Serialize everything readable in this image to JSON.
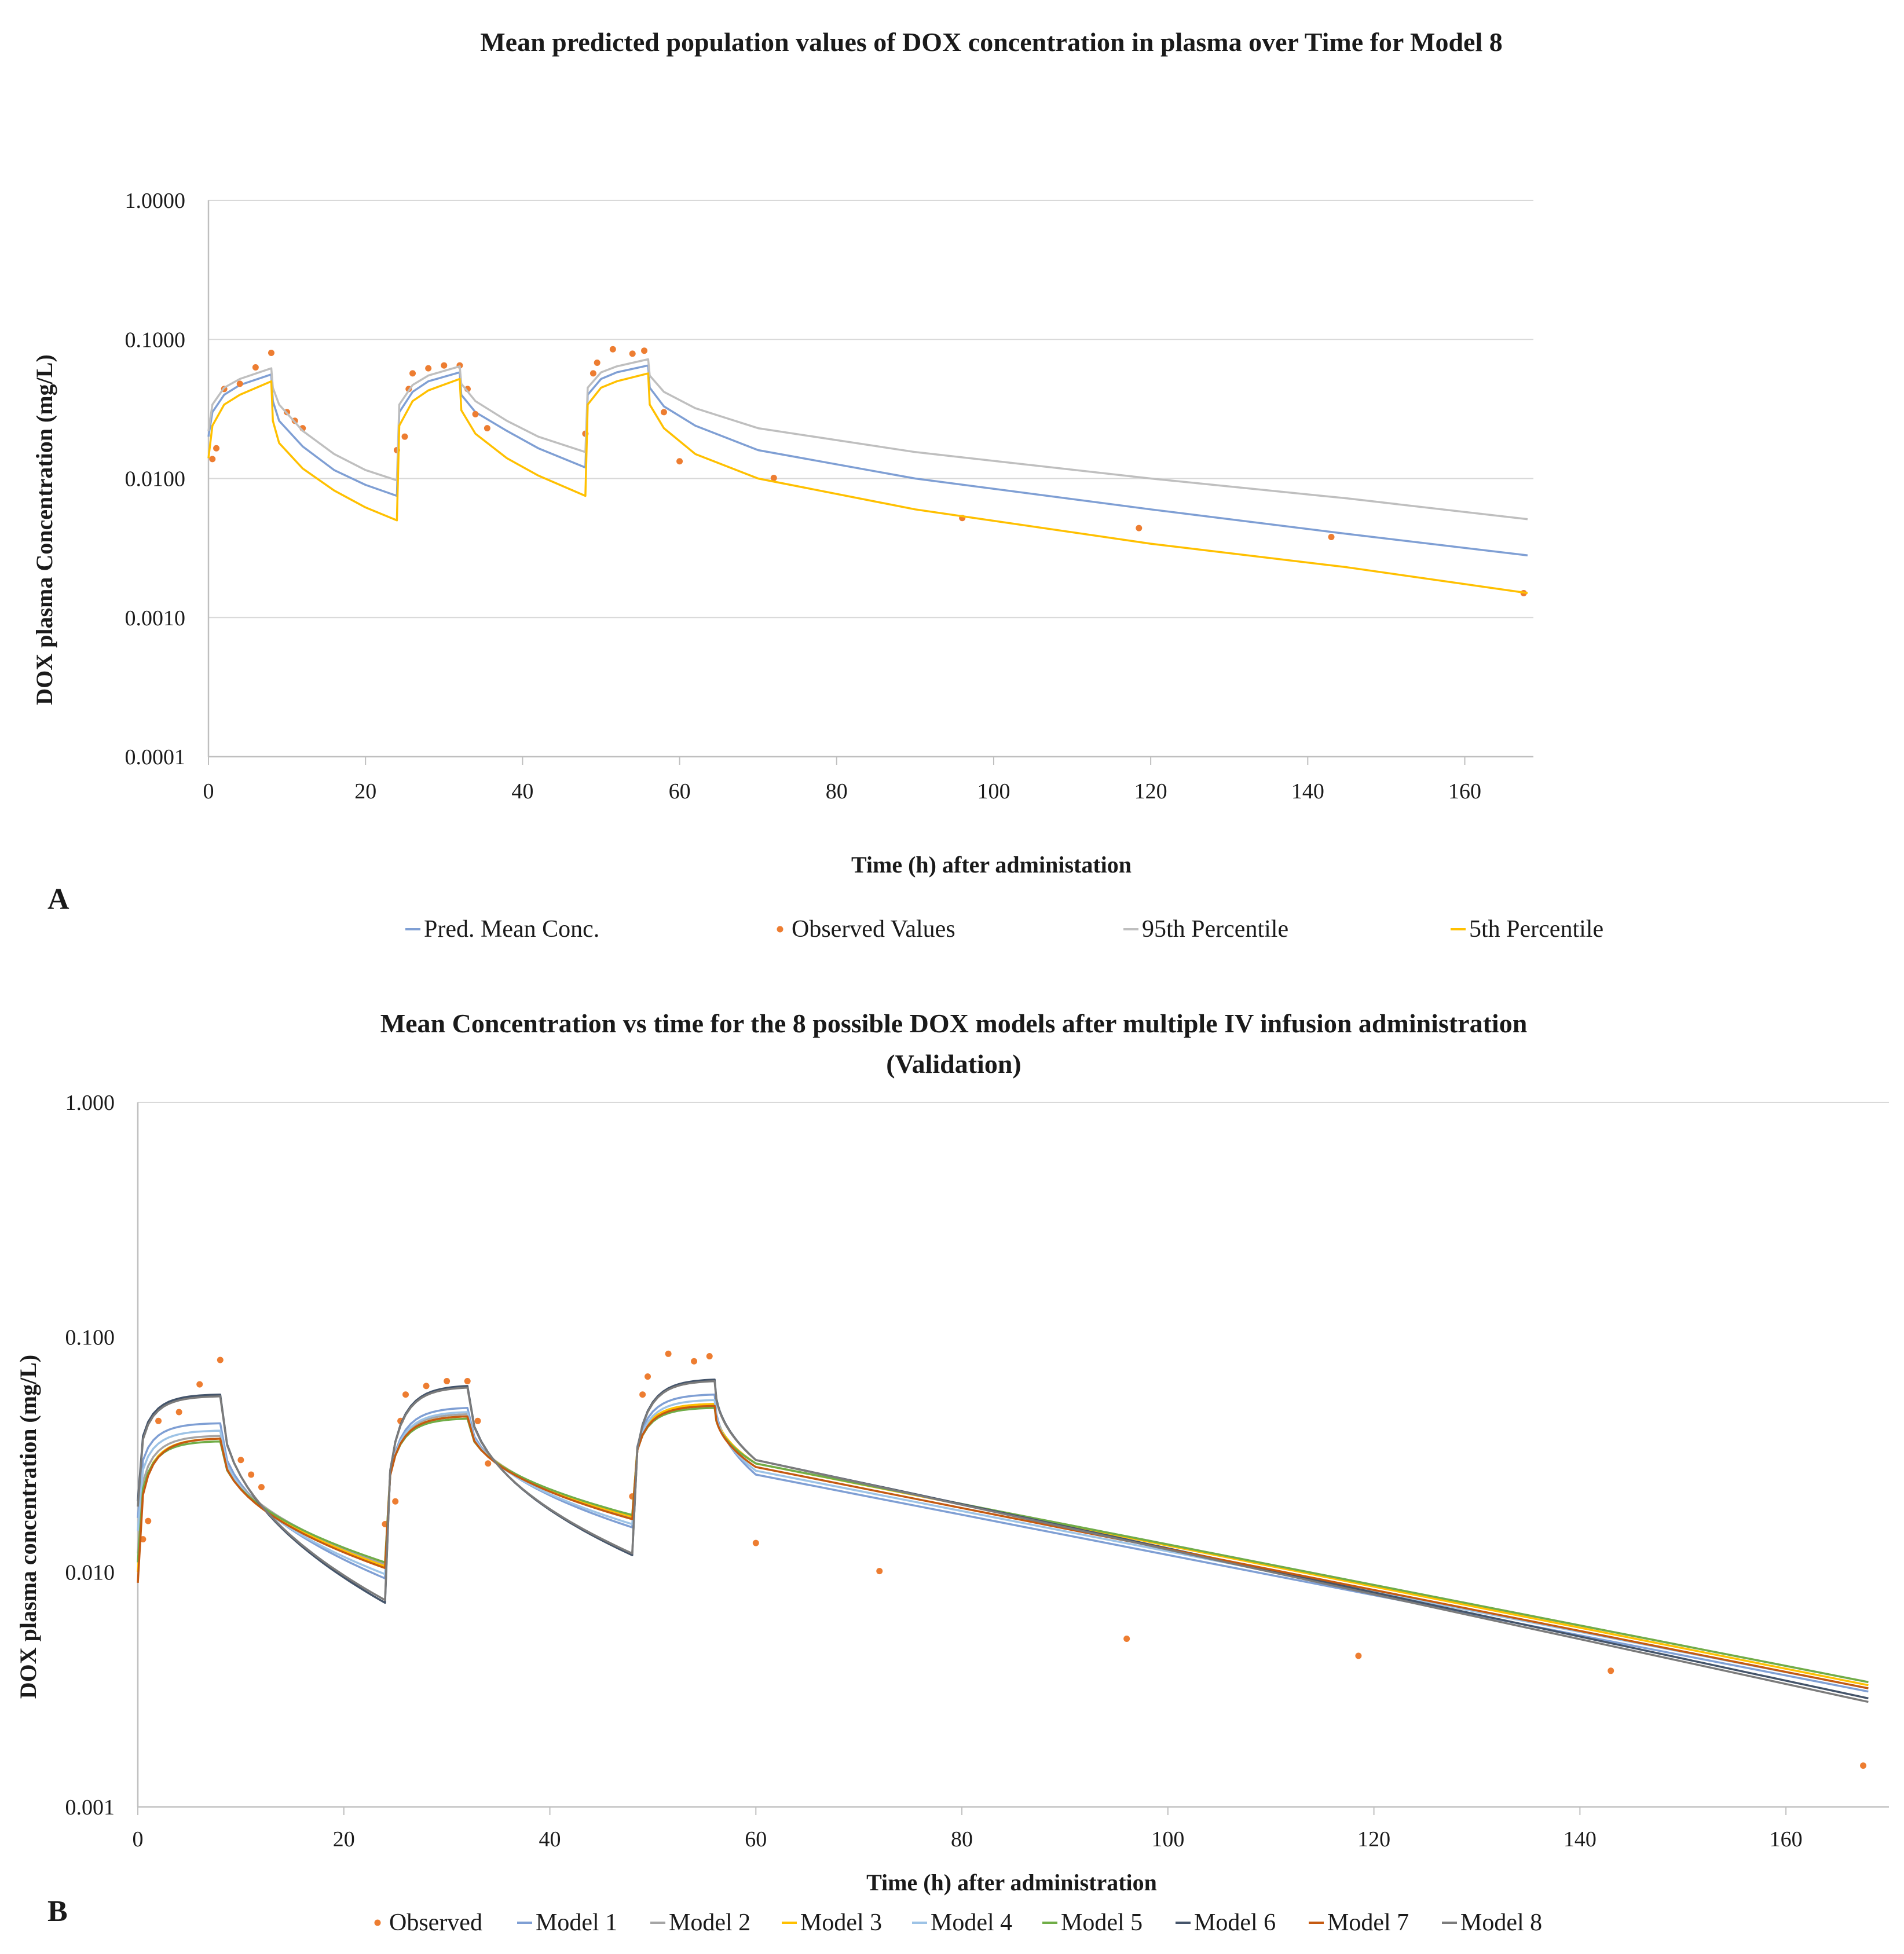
{
  "chart_data": [
    {
      "type": "line",
      "panel_label": "A",
      "title": "Mean predicted population values of DOX concentration in plasma over Time for Model 8",
      "xlabel": "Time (h) after administation",
      "ylabel": "DOX plasma Concentration (mg/L)",
      "y_scale": "log",
      "xlim": [
        0,
        168
      ],
      "ylim": [
        0.0001,
        1
      ],
      "x_ticks": [
        0,
        20,
        40,
        60,
        80,
        100,
        120,
        140,
        160
      ],
      "x_tick_labels": [
        "0",
        "20",
        "40",
        "60",
        "80",
        "100",
        "120",
        "140",
        "160"
      ],
      "y_ticks": [
        0.0001,
        0.001,
        0.01,
        0.1,
        1
      ],
      "y_tick_labels": [
        "0.0001",
        "0.0010",
        "0.0100",
        "0.1000",
        "1.0000"
      ],
      "gridlines": "horizontal",
      "legend_position": "bottom",
      "series": [
        {
          "name": "Pred. Mean Conc.",
          "kind": "line",
          "color": "#7f9fd4",
          "cycle_points": [
            [
              0,
              0.02
            ],
            [
              0.5,
              0.03
            ],
            [
              2,
              0.04
            ],
            [
              4,
              0.047
            ],
            [
              8,
              0.056
            ],
            [
              8.2,
              0.036
            ],
            [
              9,
              0.026
            ],
            [
              12,
              0.017
            ],
            [
              16,
              0.0115
            ],
            [
              20,
              0.009
            ],
            [
              24,
              0.0075
            ]
          ],
          "cycle_points_2": [
            [
              24,
              0.0075
            ],
            [
              24.3,
              0.03
            ],
            [
              26,
              0.042
            ],
            [
              28,
              0.05
            ],
            [
              32,
              0.058
            ],
            [
              32.2,
              0.04
            ],
            [
              34,
              0.03
            ],
            [
              38,
              0.022
            ],
            [
              42,
              0.0165
            ],
            [
              48,
              0.012
            ]
          ],
          "cycle_points_3": [
            [
              48,
              0.012
            ],
            [
              48.3,
              0.04
            ],
            [
              50,
              0.052
            ],
            [
              52,
              0.058
            ],
            [
              56,
              0.065
            ],
            [
              56.2,
              0.045
            ],
            [
              58,
              0.033
            ],
            [
              62,
              0.024
            ],
            [
              70,
              0.016
            ],
            [
              90,
              0.01
            ],
            [
              120,
              0.006
            ],
            [
              145,
              0.004
            ],
            [
              168,
              0.0028
            ]
          ]
        },
        {
          "name": "Observed Values",
          "kind": "scatter",
          "color": "#ed7d31",
          "points": [
            [
              0.5,
              0.0138
            ],
            [
              1,
              0.0165
            ],
            [
              2,
              0.044
            ],
            [
              4,
              0.048
            ],
            [
              6,
              0.063
            ],
            [
              8,
              0.08
            ],
            [
              10,
              0.03
            ],
            [
              11,
              0.026
            ],
            [
              12,
              0.023
            ],
            [
              24,
              0.016
            ],
            [
              25,
              0.02
            ],
            [
              25.5,
              0.044
            ],
            [
              26,
              0.057
            ],
            [
              28,
              0.062
            ],
            [
              30,
              0.065
            ],
            [
              32,
              0.065
            ],
            [
              33,
              0.044
            ],
            [
              34,
              0.029
            ],
            [
              35.5,
              0.023
            ],
            [
              48,
              0.021
            ],
            [
              49,
              0.057
            ],
            [
              49.5,
              0.068
            ],
            [
              51.5,
              0.085
            ],
            [
              54,
              0.079
            ],
            [
              55.5,
              0.083
            ],
            [
              58,
              0.03
            ],
            [
              60,
              0.0133
            ],
            [
              72,
              0.0101
            ],
            [
              96,
              0.0052
            ],
            [
              118.5,
              0.0044
            ],
            [
              143,
              0.0038
            ],
            [
              167.5,
              0.0015
            ]
          ]
        },
        {
          "name": "95th Percentile",
          "kind": "line",
          "color": "#bfbfbf",
          "cycle_points": [
            [
              0,
              0.022
            ],
            [
              0.5,
              0.034
            ],
            [
              2,
              0.045
            ],
            [
              4,
              0.052
            ],
            [
              8,
              0.062
            ],
            [
              8.2,
              0.045
            ],
            [
              9,
              0.034
            ],
            [
              12,
              0.022
            ],
            [
              16,
              0.015
            ],
            [
              20,
              0.0115
            ],
            [
              24,
              0.0097
            ]
          ],
          "cycle_points_2": [
            [
              24,
              0.0097
            ],
            [
              24.3,
              0.034
            ],
            [
              26,
              0.047
            ],
            [
              28,
              0.055
            ],
            [
              32,
              0.064
            ],
            [
              32.2,
              0.048
            ],
            [
              34,
              0.036
            ],
            [
              38,
              0.026
            ],
            [
              42,
              0.02
            ],
            [
              48,
              0.0155
            ]
          ],
          "cycle_points_3": [
            [
              48,
              0.0155
            ],
            [
              48.3,
              0.045
            ],
            [
              50,
              0.058
            ],
            [
              52,
              0.064
            ],
            [
              56,
              0.072
            ],
            [
              56.2,
              0.055
            ],
            [
              58,
              0.042
            ],
            [
              62,
              0.032
            ],
            [
              70,
              0.023
            ],
            [
              90,
              0.0155
            ],
            [
              120,
              0.01
            ],
            [
              145,
              0.0072
            ],
            [
              168,
              0.0051
            ]
          ]
        },
        {
          "name": "5th Percentile",
          "kind": "line",
          "color": "#ffc000",
          "cycle_points": [
            [
              0,
              0.014
            ],
            [
              0.5,
              0.024
            ],
            [
              2,
              0.034
            ],
            [
              4,
              0.04
            ],
            [
              8,
              0.05
            ],
            [
              8.2,
              0.026
            ],
            [
              9,
              0.018
            ],
            [
              12,
              0.0118
            ],
            [
              16,
              0.0082
            ],
            [
              20,
              0.0062
            ],
            [
              24,
              0.005
            ]
          ],
          "cycle_points_2": [
            [
              24,
              0.005
            ],
            [
              24.3,
              0.024
            ],
            [
              26,
              0.036
            ],
            [
              28,
              0.043
            ],
            [
              32,
              0.052
            ],
            [
              32.2,
              0.031
            ],
            [
              34,
              0.021
            ],
            [
              38,
              0.014
            ],
            [
              42,
              0.0105
            ],
            [
              48,
              0.0075
            ]
          ],
          "cycle_points_3": [
            [
              48,
              0.0075
            ],
            [
              48.3,
              0.034
            ],
            [
              50,
              0.045
            ],
            [
              52,
              0.05
            ],
            [
              56,
              0.057
            ],
            [
              56.2,
              0.034
            ],
            [
              58,
              0.023
            ],
            [
              62,
              0.015
            ],
            [
              70,
              0.01
            ],
            [
              90,
              0.006
            ],
            [
              120,
              0.0034
            ],
            [
              145,
              0.0023
            ],
            [
              168,
              0.0015
            ]
          ]
        }
      ]
    },
    {
      "type": "line",
      "panel_label": "B",
      "title": "Mean Concentration vs time for the 8 possible DOX models after multiple IV infusion administration",
      "title_line2": "(Validation)",
      "xlabel": "Time (h) after administration",
      "ylabel": "DOX plasma concentration (mg/L)",
      "y_scale": "log",
      "xlim": [
        0,
        170
      ],
      "ylim": [
        0.001,
        1
      ],
      "x_ticks": [
        0,
        20,
        40,
        60,
        80,
        100,
        120,
        140,
        160
      ],
      "x_tick_labels": [
        "0",
        "20",
        "40",
        "60",
        "80",
        "100",
        "120",
        "140",
        "160"
      ],
      "y_ticks": [
        0.001,
        0.01,
        0.1,
        1
      ],
      "y_tick_labels": [
        "0.001",
        "0.010",
        "0.100",
        "1.000"
      ],
      "gridlines": "top",
      "legend_position": "bottom",
      "series": [
        {
          "name": "Observed",
          "kind": "scatter",
          "color": "#ed7d31",
          "points": [
            [
              0.5,
              0.0138
            ],
            [
              1,
              0.0165
            ],
            [
              2,
              0.044
            ],
            [
              4,
              0.048
            ],
            [
              6,
              0.063
            ],
            [
              8,
              0.08
            ],
            [
              10,
              0.03
            ],
            [
              11,
              0.026
            ],
            [
              12,
              0.023
            ],
            [
              24,
              0.016
            ],
            [
              25,
              0.02
            ],
            [
              25.5,
              0.044
            ],
            [
              26,
              0.057
            ],
            [
              28,
              0.062
            ],
            [
              30,
              0.065
            ],
            [
              32,
              0.065
            ],
            [
              33,
              0.044
            ],
            [
              34,
              0.029
            ],
            [
              48,
              0.021
            ],
            [
              49,
              0.057
            ],
            [
              49.5,
              0.068
            ],
            [
              51.5,
              0.085
            ],
            [
              54,
              0.079
            ],
            [
              55.5,
              0.083
            ],
            [
              60,
              0.0133
            ],
            [
              72,
              0.0101
            ],
            [
              96,
              0.0052
            ],
            [
              118.5,
              0.0044
            ],
            [
              143,
              0.0038
            ],
            [
              167.5,
              0.0015
            ]
          ]
        },
        {
          "name": "Model 1",
          "kind": "line",
          "color": "#7f9fd4",
          "profile": [
            0.017,
            0.043,
            0.0094,
            0.05,
            0.0155,
            0.057,
            0.026,
            0.0031
          ]
        },
        {
          "name": "Model 2",
          "kind": "line",
          "color": "#a5a5a5",
          "profile": [
            0.012,
            0.038,
            0.0108,
            0.047,
            0.017,
            0.052,
            0.029,
            0.0034
          ]
        },
        {
          "name": "Model 3",
          "kind": "line",
          "color": "#ffc000",
          "profile": [
            0.01,
            0.037,
            0.0106,
            0.046,
            0.0172,
            0.052,
            0.029,
            0.0033
          ]
        },
        {
          "name": "Model 4",
          "kind": "line",
          "color": "#9dc3e6",
          "profile": [
            0.015,
            0.04,
            0.0098,
            0.048,
            0.016,
            0.054,
            0.027,
            0.0032
          ]
        },
        {
          "name": "Model 5",
          "kind": "line",
          "color": "#70ad47",
          "profile": [
            0.011,
            0.036,
            0.011,
            0.045,
            0.0175,
            0.05,
            0.029,
            0.0034
          ]
        },
        {
          "name": "Model 6",
          "kind": "line",
          "color": "#44546a",
          "profile": [
            0.02,
            0.057,
            0.0074,
            0.062,
            0.0118,
            0.066,
            0.03,
            0.0029
          ]
        },
        {
          "name": "Model 7",
          "kind": "line",
          "color": "#c55a11",
          "profile": [
            0.009,
            0.037,
            0.0104,
            0.046,
            0.0168,
            0.051,
            0.028,
            0.0032
          ]
        },
        {
          "name": "Model 8",
          "kind": "line",
          "color": "#7b7b7b",
          "profile": [
            0.019,
            0.056,
            0.0076,
            0.061,
            0.012,
            0.065,
            0.03,
            0.0028
          ]
        }
      ]
    }
  ]
}
